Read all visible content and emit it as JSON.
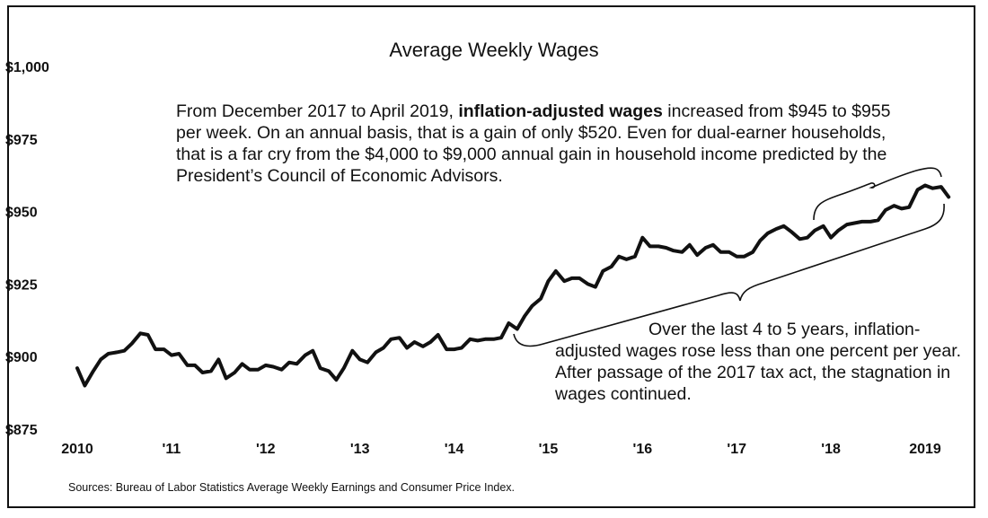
{
  "chart_data": {
    "type": "line",
    "title": "Average Weekly Wages",
    "ylim": [
      875,
      1000
    ],
    "y_tick_values": [
      875,
      900,
      925,
      950,
      975,
      1000
    ],
    "y_tick_labels": [
      "$875",
      "$900",
      "$925",
      "$950",
      "$975",
      "$1,000"
    ],
    "x_range": [
      2010,
      2019.5
    ],
    "x_tick_values": [
      2010,
      2011,
      2012,
      2013,
      2014,
      2015,
      2016,
      2017,
      2018,
      2019
    ],
    "x_tick_labels": [
      "2010",
      "'11",
      "'12",
      "'13",
      "'14",
      "'15",
      "'16",
      "'17",
      "'18",
      "2019"
    ],
    "grid": false,
    "series": [
      {
        "x": [
          2010.0,
          2010.08,
          2010.17,
          2010.25,
          2010.33,
          2010.42,
          2010.5,
          2010.58,
          2010.67,
          2010.75,
          2010.83,
          2010.92,
          2011.0,
          2011.08,
          2011.17,
          2011.25,
          2011.33,
          2011.42,
          2011.5,
          2011.58,
          2011.67,
          2011.75,
          2011.83,
          2011.92,
          2012.0,
          2012.08,
          2012.17,
          2012.25,
          2012.33,
          2012.42,
          2012.5,
          2012.58,
          2012.67,
          2012.75,
          2012.83,
          2012.92,
          2013.0,
          2013.08,
          2013.17,
          2013.25,
          2013.33,
          2013.42,
          2013.5,
          2013.58,
          2013.67,
          2013.75,
          2013.83,
          2013.92,
          2014.0,
          2014.08,
          2014.17,
          2014.25,
          2014.33,
          2014.42,
          2014.5,
          2014.58,
          2014.67,
          2014.75,
          2014.83,
          2014.92,
          2015.0,
          2015.08,
          2015.17,
          2015.25,
          2015.33,
          2015.42,
          2015.5,
          2015.58,
          2015.67,
          2015.75,
          2015.83,
          2015.92,
          2016.0,
          2016.08,
          2016.17,
          2016.25,
          2016.33,
          2016.42,
          2016.5,
          2016.58,
          2016.67,
          2016.75,
          2016.83,
          2016.92,
          2017.0,
          2017.08,
          2017.17,
          2017.25,
          2017.33,
          2017.42,
          2017.5,
          2017.58,
          2017.67,
          2017.75,
          2017.83,
          2017.92,
          2018.0,
          2018.08,
          2018.17,
          2018.25,
          2018.33,
          2018.42,
          2018.5,
          2018.58,
          2018.67,
          2018.75,
          2018.83,
          2018.92,
          2019.0,
          2019.08,
          2019.17,
          2019.25
        ],
        "values": [
          896,
          890,
          895,
          899,
          901,
          901.5,
          902,
          904.5,
          908,
          907.5,
          902.5,
          902.5,
          900.5,
          901,
          897,
          897,
          894.5,
          895,
          899,
          892.5,
          894.5,
          897.5,
          895.5,
          895.5,
          897,
          896.5,
          895.5,
          898,
          897.5,
          900.5,
          902,
          896,
          895,
          892,
          896,
          902,
          899,
          898,
          901.5,
          903,
          906,
          906.5,
          903,
          905,
          903.5,
          905,
          907.5,
          902.5,
          902.5,
          903,
          906,
          905.5,
          906,
          906,
          906.5,
          911.5,
          909.5,
          914,
          917.5,
          920,
          926,
          929.5,
          926,
          927,
          927,
          925,
          924,
          929.5,
          931,
          934.5,
          933.5,
          934.5,
          941,
          938,
          938,
          937.5,
          936.5,
          936,
          938.5,
          935,
          937.5,
          938.5,
          936,
          936,
          934.5,
          934.5,
          936,
          940,
          942.5,
          944,
          945,
          943,
          940.5,
          941,
          943.5,
          945,
          941,
          943.5,
          945.5,
          946,
          946.5,
          946.5,
          947,
          950.5,
          952,
          951,
          951.5,
          957.5,
          959,
          958,
          958.5,
          955
        ]
      }
    ]
  },
  "annotations": {
    "top_note_before": "From December 2017 to April 2019, ",
    "top_note_bold": "inflation-adjusted wages",
    "top_note_after": " increased from $945 to $955 per week.  On an annual basis, that is a gain of only $520.  Even for dual-earner households, that is a far cry from the $4,000 to $9,000 annual gain in household income predicted by the President’s Council of Economic Advisors.",
    "bottom_note": "Over the last 4 to 5 years, inflation-adjusted wages rose less than one percent per year. After passage of the 2017 tax act, the stagnation in wages continued."
  },
  "source": "Sources: Bureau of Labor Statistics Average Weekly Earnings and Consumer Price Index.",
  "colors": {
    "line": "#111111",
    "background": "#ffffff"
  }
}
